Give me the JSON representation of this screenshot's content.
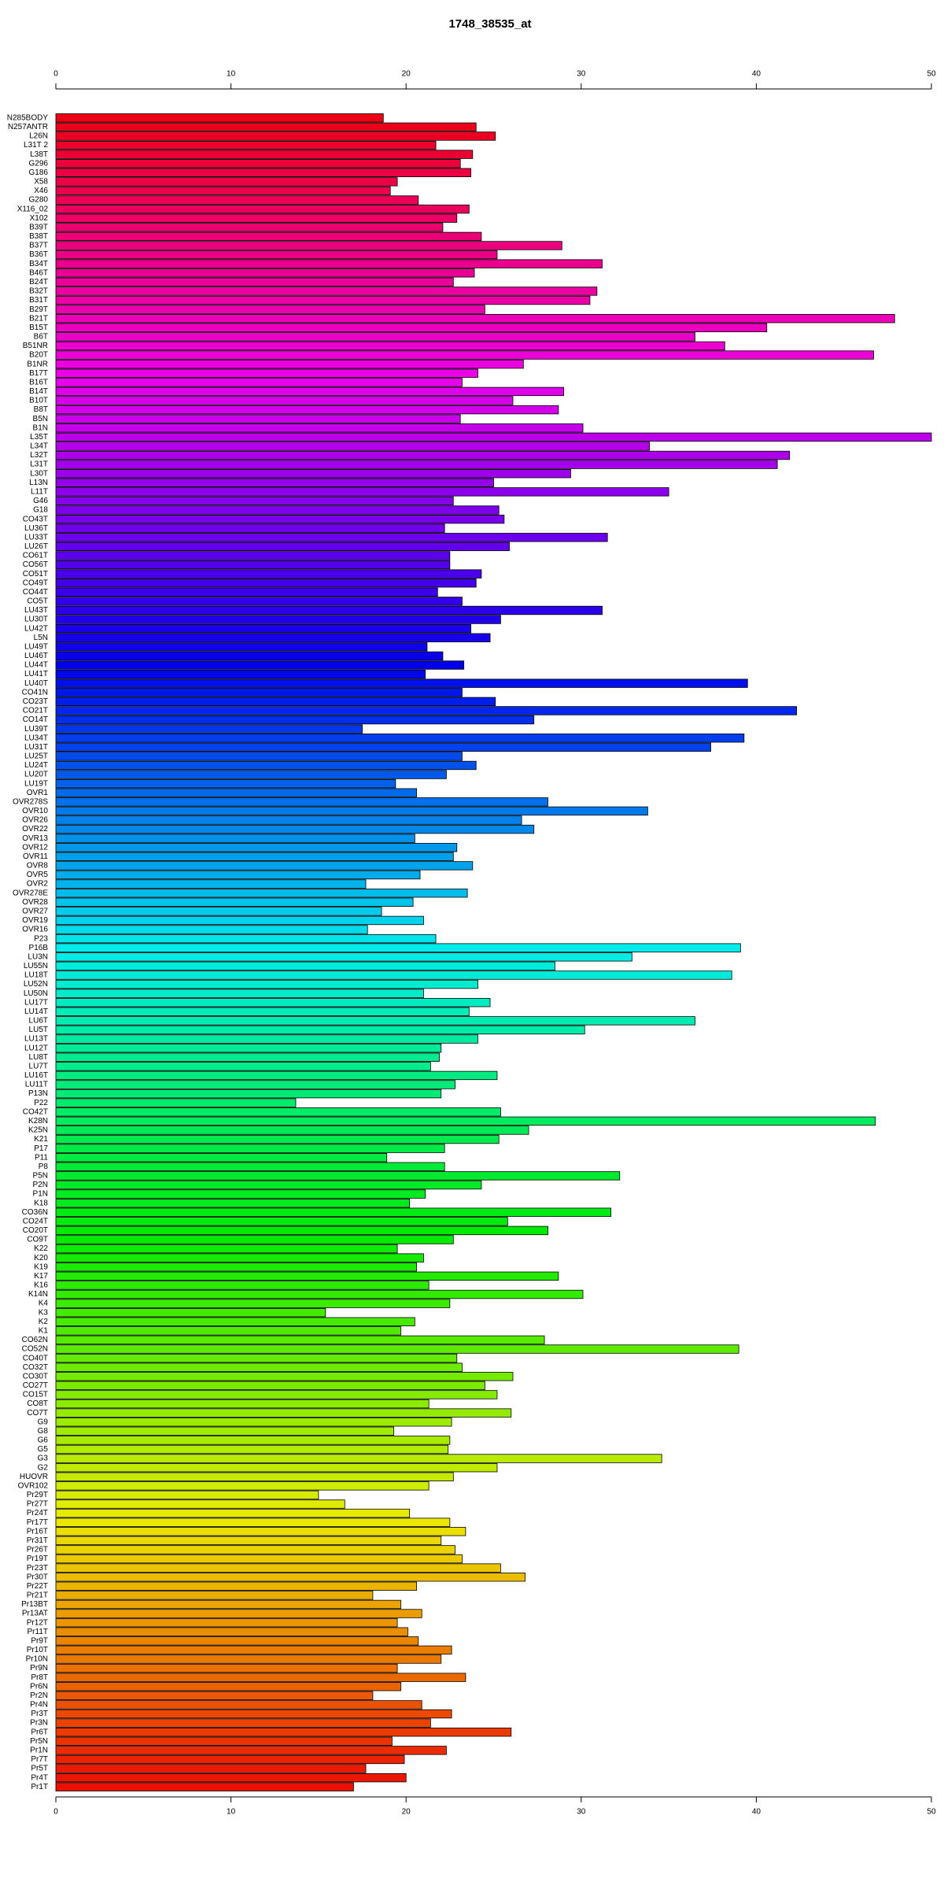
{
  "chart_data": {
    "type": "barh",
    "title": "1748_38535_at",
    "categories": [
      "N285BODY",
      "N257ANTR",
      "L26N",
      "L31T 2",
      "L38T",
      "G296",
      "G186",
      "X58",
      "X46",
      "G280",
      "X116_02",
      "X102",
      "B39T",
      "B38T",
      "B37T",
      "B36T",
      "B34T",
      "B46T",
      "B24T",
      "B32T",
      "B31T",
      "B29T",
      "B21T",
      "B15T",
      "B6T",
      "B51NR",
      "B20T",
      "B1NR",
      "B17T",
      "B16T",
      "B14T",
      "B10T",
      "B8T",
      "B5N",
      "B1N",
      "L35T",
      "L34T",
      "L32T",
      "L31T",
      "L30T",
      "L13N",
      "L11T",
      "G46",
      "G18",
      "CO43T",
      "LU36T",
      "LU33T",
      "LU26T",
      "CO61T",
      "CO56T",
      "CO51T",
      "CO49T",
      "CO44T",
      "CO5T",
      "LU43T",
      "LU30T",
      "LU42T",
      "L5N",
      "LU49T",
      "LU46T",
      "LU44T",
      "LU41T",
      "LU40T",
      "CO41N",
      "CO23T",
      "CO21T",
      "CO14T",
      "LU39T",
      "LU34T",
      "LU31T",
      "LU25T",
      "LU24T",
      "LU20T",
      "LU19T",
      "OVR1",
      "OVR278S",
      "OVR10",
      "OVR26",
      "OVR22",
      "OVR13",
      "OVR12",
      "OVR11",
      "OVR8",
      "OVR5",
      "OVR2",
      "OVR278E",
      "OVR28",
      "OVR27",
      "OVR19",
      "OVR16",
      "P23",
      "P16B",
      "LU3N",
      "LU55N",
      "LU18T",
      "LU52N",
      "LU50N",
      "LU17T",
      "LU14T",
      "LU6T",
      "LU5T",
      "LU13T",
      "LU12T",
      "LU8T",
      "LU7T",
      "LU16T",
      "LU11T",
      "P13N",
      "P22",
      "CO42T",
      "K28N",
      "K25N",
      "K21",
      "P17",
      "P11",
      "P8",
      "P5N",
      "P2N",
      "P1N",
      "K18",
      "CO36N",
      "CO24T",
      "CO20T",
      "CO9T",
      "K22",
      "K20",
      "K19",
      "K17",
      "K16",
      "K14N",
      "K4",
      "K3",
      "K2",
      "K1",
      "CO62N",
      "CO52N",
      "CO40T",
      "CO32T",
      "CO30T",
      "CO27T",
      "CO15T",
      "CO8T",
      "CO7T",
      "G9",
      "G8",
      "G6",
      "G5",
      "G3",
      "G2",
      "HUOVR",
      "OVR102",
      "Pr29T",
      "Pr27T",
      "Pr24T",
      "Pr17T",
      "Pr16T",
      "Pr31T",
      "Pr26T",
      "Pr19T",
      "Pr23T",
      "Pr30T",
      "Pr22T",
      "Pr21T",
      "Pr13BT",
      "Pr13AT",
      "Pr12T",
      "Pr11T",
      "Pr9T",
      "Pr10T",
      "Pr10N",
      "Pr9N",
      "Pr8T",
      "Pr6N",
      "Pr2N",
      "Pr4N",
      "Pr3T",
      "Pr3N",
      "Pr6T",
      "Pr5N",
      "Pr1N",
      "Pr7T",
      "Pr5T",
      "Pr4T",
      "Pr1T"
    ],
    "values": [
      18.7,
      24.0,
      25.1,
      21.7,
      23.8,
      23.1,
      23.7,
      19.5,
      19.1,
      20.7,
      23.6,
      22.9,
      22.1,
      24.3,
      28.9,
      25.2,
      31.2,
      23.9,
      22.7,
      30.9,
      30.5,
      24.5,
      47.9,
      40.6,
      36.5,
      38.2,
      46.7,
      26.7,
      24.1,
      23.2,
      29.0,
      26.1,
      28.7,
      23.1,
      30.1,
      50.0,
      33.9,
      41.9,
      41.2,
      29.4,
      25.0,
      35.0,
      22.7,
      25.3,
      25.6,
      22.2,
      31.5,
      25.9,
      22.5,
      22.5,
      24.3,
      24.0,
      21.8,
      23.2,
      31.2,
      25.4,
      23.7,
      24.8,
      21.2,
      22.1,
      23.3,
      21.1,
      39.5,
      23.2,
      25.1,
      42.3,
      27.3,
      17.5,
      39.3,
      37.4,
      23.2,
      24.0,
      22.3,
      19.4,
      20.6,
      28.1,
      33.8,
      26.6,
      27.3,
      20.5,
      22.9,
      22.7,
      23.8,
      20.8,
      17.7,
      23.5,
      20.4,
      18.6,
      21.0,
      17.8,
      21.7,
      39.1,
      32.9,
      28.5,
      38.6,
      24.1,
      21.0,
      24.8,
      23.6,
      36.5,
      30.2,
      24.1,
      22.0,
      21.9,
      21.4,
      25.2,
      22.8,
      22.0,
      13.7,
      25.4,
      46.8,
      27.0,
      25.3,
      22.2,
      18.9,
      22.2,
      32.2,
      24.3,
      21.1,
      20.2,
      31.7,
      25.8,
      28.1,
      22.7,
      19.5,
      21.0,
      20.6,
      28.7,
      21.3,
      30.1,
      22.5,
      15.4,
      20.5,
      19.7,
      27.9,
      39.0,
      22.9,
      23.2,
      26.1,
      24.5,
      25.2,
      21.3,
      26.0,
      22.6,
      19.3,
      22.5,
      22.4,
      34.6,
      25.2,
      22.7,
      21.3,
      15.0,
      16.5,
      20.2,
      22.5,
      23.4,
      22.0,
      22.8,
      23.2,
      25.4,
      26.8,
      20.6,
      18.1,
      19.7,
      20.9,
      19.5,
      20.1,
      20.7,
      22.6,
      22.0,
      19.5,
      23.4,
      19.7,
      18.1,
      20.9,
      22.6,
      21.4,
      26.0,
      19.2,
      22.3,
      19.9,
      17.7,
      20.0,
      17.0
    ],
    "colors": [
      "hsl(355,100%,46%)",
      "hsl(353,100%,46%)",
      "hsl(351,100%,46%)",
      "hsl(349,100%,46%)",
      "hsl(347,100%,46%)",
      "hsl(345,100%,46%)",
      "hsl(343,100%,46%)",
      "hsl(342,100%,46%)",
      "hsl(340,100%,46%)",
      "hsl(338,100%,46%)",
      "hsl(336,100%,46%)",
      "hsl(334,100%,46%)",
      "hsl(332,100%,46%)",
      "hsl(330,100%,46%)",
      "hsl(328,100%,46%)",
      "hsl(326,100%,46%)",
      "hsl(324,100%,46%)",
      "hsl(322,100%,46%)",
      "hsl(320,100%,46%)",
      "hsl(319,100%,46%)",
      "hsl(317,100%,46%)",
      "hsl(315,100%,46%)",
      "hsl(313,100%,46%)",
      "hsl(311,100%,46%)",
      "hsl(309,100%,46%)",
      "hsl(307,100%,46%)",
      "hsl(305,100%,46%)",
      "hsl(303,100%,46%)",
      "hsl(301,100%,46%)",
      "hsl(299,100%,46%)",
      "hsl(297,100%,46%)",
      "hsl(295,100%,46%)",
      "hsl(294,100%,46%)",
      "hsl(292,100%,46%)",
      "hsl(290,100%,46%)",
      "hsl(288,100%,46%)",
      "hsl(286,100%,46%)",
      "hsl(284,100%,46%)",
      "hsl(282,100%,46%)",
      "hsl(280,100%,46%)",
      "hsl(278,100%,46%)",
      "hsl(276,100%,46%)",
      "hsl(274,100%,46%)",
      "hsl(272,100%,46%)",
      "hsl(271,100%,46%)",
      "hsl(269,100%,46%)",
      "hsl(267,100%,46%)",
      "hsl(265,100%,46%)",
      "hsl(263,100%,46%)",
      "hsl(261,100%,46%)",
      "hsl(259,100%,46%)",
      "hsl(257,100%,46%)",
      "hsl(255,100%,46%)",
      "hsl(253,100%,46%)",
      "hsl(251,100%,46%)",
      "hsl(249,100%,46%)",
      "hsl(247,100%,46%)",
      "hsl(246,100%,46%)",
      "hsl(244,100%,46%)",
      "hsl(242,100%,46%)",
      "hsl(240,100%,46%)",
      "hsl(238,100%,46%)",
      "hsl(236,100%,46%)",
      "hsl(234,100%,46%)",
      "hsl(232,100%,46%)",
      "hsl(230,100%,46%)",
      "hsl(228,100%,46%)",
      "hsl(226,100%,46%)",
      "hsl(224,100%,46%)",
      "hsl(223,100%,46%)",
      "hsl(221,100%,46%)",
      "hsl(219,100%,46%)",
      "hsl(217,100%,46%)",
      "hsl(215,100%,46%)",
      "hsl(213,100%,46%)",
      "hsl(211,100%,46%)",
      "hsl(209,100%,46%)",
      "hsl(207,100%,46%)",
      "hsl(205,100%,46%)",
      "hsl(203,100%,46%)",
      "hsl(201,100%,46%)",
      "hsl(199,100%,46%)",
      "hsl(198,100%,46%)",
      "hsl(196,100%,46%)",
      "hsl(194,100%,46%)",
      "hsl(192,100%,46%)",
      "hsl(190,100%,46%)",
      "hsl(188,100%,46%)",
      "hsl(186,100%,46%)",
      "hsl(184,100%,46%)",
      "hsl(182,100%,46%)",
      "hsl(180,100%,46%)",
      "hsl(178,100%,46%)",
      "hsl(176,100%,46%)",
      "hsl(175,100%,46%)",
      "hsl(173,100%,46%)",
      "hsl(171,100%,46%)",
      "hsl(169,100%,46%)",
      "hsl(167,100%,46%)",
      "hsl(165,100%,46%)",
      "hsl(163,100%,46%)",
      "hsl(161,100%,46%)",
      "hsl(159,100%,46%)",
      "hsl(157,100%,46%)",
      "hsl(155,100%,46%)",
      "hsl(153,100%,46%)",
      "hsl(151,100%,46%)",
      "hsl(150,100%,46%)",
      "hsl(148,100%,46%)",
      "hsl(146,100%,46%)",
      "hsl(144,100%,46%)",
      "hsl(142,100%,46%)",
      "hsl(140,100%,46%)",
      "hsl(138,100%,46%)",
      "hsl(136,100%,46%)",
      "hsl(134,100%,46%)",
      "hsl(132,100%,46%)",
      "hsl(130,100%,46%)",
      "hsl(128,100%,46%)",
      "hsl(127,100%,46%)",
      "hsl(125,100%,46%)",
      "hsl(123,100%,46%)",
      "hsl(121,100%,46%)",
      "hsl(119,100%,46%)",
      "hsl(117,100%,46%)",
      "hsl(115,100%,46%)",
      "hsl(113,100%,46%)",
      "hsl(111,100%,46%)",
      "hsl(109,100%,46%)",
      "hsl(107,100%,46%)",
      "hsl(105,100%,46%)",
      "hsl(103,100%,46%)",
      "hsl(102,100%,46%)",
      "hsl(100,100%,46%)",
      "hsl(98,100%,46%)",
      "hsl(96,100%,46%)",
      "hsl(94,100%,46%)",
      "hsl(92,100%,46%)",
      "hsl(90,100%,46%)",
      "hsl(88,100%,46%)",
      "hsl(86,100%,46%)",
      "hsl(84,100%,46%)",
      "hsl(82,100%,46%)",
      "hsl(80,100%,46%)",
      "hsl(79,100%,46%)",
      "hsl(77,100%,46%)",
      "hsl(75,100%,46%)",
      "hsl(73,100%,46%)",
      "hsl(71,100%,46%)",
      "hsl(69,100%,46%)",
      "hsl(67,100%,46%)",
      "hsl(65,100%,46%)",
      "hsl(63,100%,46%)",
      "hsl(61,100%,46%)",
      "hsl(59,100%,46%)",
      "hsl(57,100%,46%)",
      "hsl(55,100%,46%)",
      "hsl(54,100%,46%)",
      "hsl(52,100%,46%)",
      "hsl(50,100%,46%)",
      "hsl(48,100%,46%)",
      "hsl(46,100%,46%)",
      "hsl(44,100%,46%)",
      "hsl(42,100%,46%)",
      "hsl(40,100%,46%)",
      "hsl(38,100%,46%)",
      "hsl(36,100%,46%)",
      "hsl(34,100%,46%)",
      "hsl(32,100%,46%)",
      "hsl(31,100%,46%)",
      "hsl(29,100%,46%)",
      "hsl(27,100%,46%)",
      "hsl(25,100%,46%)",
      "hsl(23,100%,46%)",
      "hsl(21,100%,46%)",
      "hsl(19,100%,46%)",
      "hsl(17,100%,46%)",
      "hsl(15,100%,46%)",
      "hsl(13,100%,46%)",
      "hsl(11,100%,46%)",
      "hsl(9,100%,46%)",
      "hsl(7,100%,46%)",
      "hsl(6,100%,46%)",
      "hsl(4,100%,46%)"
    ],
    "xlim": [
      0,
      50
    ],
    "xticks": [
      0,
      10,
      20,
      30,
      40,
      50
    ]
  }
}
